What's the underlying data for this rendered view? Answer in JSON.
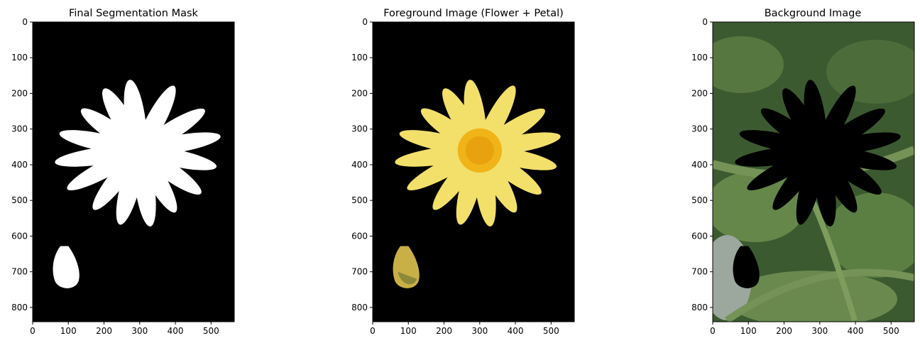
{
  "chart_data": [
    {
      "type": "image",
      "title": "Final Segmentation Mask",
      "image_content": "binary mask: white flower and bud on black",
      "x_range": [
        0,
        565
      ],
      "y_range": [
        0,
        840
      ],
      "y_inverted": true,
      "xticks": [
        0,
        100,
        200,
        300,
        400,
        500
      ],
      "yticks": [
        0,
        100,
        200,
        300,
        400,
        500,
        600,
        700,
        800
      ],
      "colors": {
        "background": "#000000",
        "mask": "#ffffff"
      }
    },
    {
      "type": "image",
      "title": "Foreground Image (Flower + Petal)",
      "image_content": "yellow daisy and bud on black background",
      "x_range": [
        0,
        565
      ],
      "y_range": [
        0,
        840
      ],
      "y_inverted": true,
      "xticks": [
        0,
        100,
        200,
        300,
        400,
        500
      ],
      "yticks": [
        0,
        100,
        200,
        300,
        400,
        500,
        600,
        700,
        800
      ],
      "colors": {
        "background": "#000000",
        "petal": "#f2e06a",
        "center": "#f0b419",
        "bud": "#c9b046"
      }
    },
    {
      "type": "image",
      "title": "Background Image",
      "image_content": "green foliage with black flower-shaped cutout",
      "x_range": [
        0,
        565
      ],
      "y_range": [
        0,
        840
      ],
      "y_inverted": true,
      "xticks": [
        0,
        100,
        200,
        300,
        400,
        500
      ],
      "yticks": [
        0,
        100,
        200,
        300,
        400,
        500,
        600,
        700,
        800
      ],
      "colors": {
        "foliage_dark": "#2f4a26",
        "foliage_light": "#6a8c4c",
        "cutout": "#000000"
      }
    }
  ]
}
